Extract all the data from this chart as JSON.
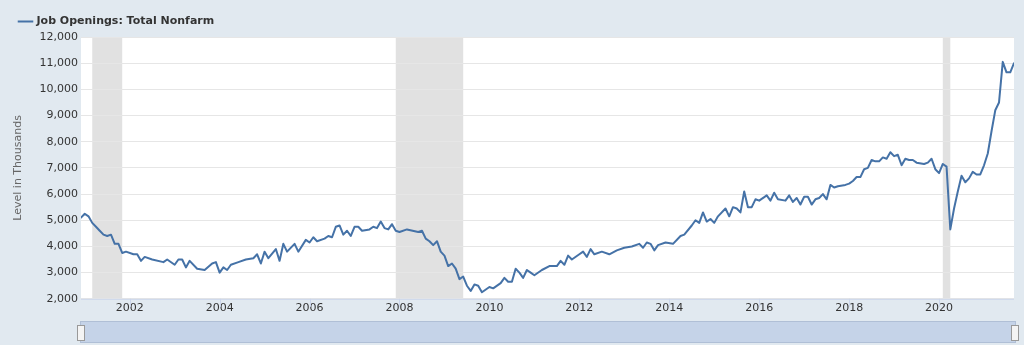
{
  "chart_data": {
    "type": "line",
    "ylabel": "Level in Thousands",
    "legend": "top left",
    "grid": "y",
    "marker": "none",
    "line_style": "solid",
    "xlim": [
      "2000-12",
      "2021-09"
    ],
    "xticks": [
      "2002",
      "2004",
      "2006",
      "2008",
      "2010",
      "2012",
      "2014",
      "2016",
      "2018",
      "2020"
    ],
    "ylim": [
      2000,
      12000
    ],
    "yticks": [
      {
        "value": 2000,
        "label": "2,000"
      },
      {
        "value": 3000,
        "label": "3,000"
      },
      {
        "value": 4000,
        "label": "4,000"
      },
      {
        "value": 5000,
        "label": "5,000"
      },
      {
        "value": 6000,
        "label": "6,000"
      },
      {
        "value": 7000,
        "label": "7,000"
      },
      {
        "value": 8000,
        "label": "8,000"
      },
      {
        "value": 9000,
        "label": "9,000"
      },
      {
        "value": 10000,
        "label": "10,000"
      },
      {
        "value": 11000,
        "label": "11,000"
      },
      {
        "value": 12000,
        "label": "12,000"
      }
    ],
    "bands": [
      {
        "axis": "x",
        "from": "2001-03",
        "to": "2001-11",
        "color": "#e1e1e1"
      },
      {
        "axis": "x",
        "from": "2007-12",
        "to": "2009-06",
        "color": "#e1e1e1"
      },
      {
        "axis": "x",
        "from": "2020-02",
        "to": "2020-04",
        "color": "#e1e1e1"
      }
    ],
    "series": [
      {
        "name": "Job Openings: Total Nonfarm",
        "color": "#4572a7",
        "x": [
          "2000-12",
          "2001-01",
          "2001-02",
          "2001-03",
          "2001-04",
          "2001-05",
          "2001-06",
          "2001-07",
          "2001-08",
          "2001-09",
          "2001-10",
          "2001-11",
          "2001-12",
          "2002-02",
          "2002-03",
          "2002-04",
          "2002-05",
          "2002-07",
          "2002-10",
          "2002-11",
          "2003-01",
          "2003-02",
          "2003-03",
          "2003-04",
          "2003-05",
          "2003-07",
          "2003-09",
          "2003-11",
          "2003-12",
          "2004-01",
          "2004-02",
          "2004-03",
          "2004-04",
          "2004-06",
          "2004-08",
          "2004-10",
          "2004-11",
          "2004-12",
          "2005-01",
          "2005-02",
          "2005-04",
          "2005-05",
          "2005-06",
          "2005-07",
          "2005-09",
          "2005-10",
          "2005-12",
          "2006-01",
          "2006-02",
          "2006-03",
          "2006-05",
          "2006-06",
          "2006-07",
          "2006-08",
          "2006-09",
          "2006-10",
          "2006-11",
          "2006-12",
          "2007-01",
          "2007-02",
          "2007-03",
          "2007-05",
          "2007-06",
          "2007-07",
          "2007-08",
          "2007-09",
          "2007-10",
          "2007-11",
          "2007-12",
          "2008-01",
          "2008-03",
          "2008-06",
          "2008-07",
          "2008-08",
          "2008-09",
          "2008-10",
          "2008-11",
          "2008-12",
          "2009-01",
          "2009-02",
          "2009-03",
          "2009-04",
          "2009-05",
          "2009-06",
          "2009-07",
          "2009-08",
          "2009-09",
          "2009-10",
          "2009-11",
          "2010-01",
          "2010-02",
          "2010-04",
          "2010-05",
          "2010-06",
          "2010-07",
          "2010-08",
          "2010-09",
          "2010-10",
          "2010-11",
          "2010-12",
          "2011-01",
          "2011-03",
          "2011-05",
          "2011-07",
          "2011-08",
          "2011-09",
          "2011-10",
          "2011-11",
          "2012-01",
          "2012-02",
          "2012-03",
          "2012-04",
          "2012-05",
          "2012-07",
          "2012-09",
          "2012-11",
          "2013-01",
          "2013-03",
          "2013-05",
          "2013-06",
          "2013-07",
          "2013-08",
          "2013-09",
          "2013-10",
          "2013-12",
          "2014-02",
          "2014-04",
          "2014-05",
          "2014-07",
          "2014-08",
          "2014-09",
          "2014-10",
          "2014-11",
          "2014-12",
          "2015-01",
          "2015-02",
          "2015-04",
          "2015-05",
          "2015-06",
          "2015-07",
          "2015-08",
          "2015-09",
          "2015-10",
          "2015-11",
          "2015-12",
          "2016-01",
          "2016-03",
          "2016-04",
          "2016-05",
          "2016-06",
          "2016-08",
          "2016-09",
          "2016-10",
          "2016-11",
          "2016-12",
          "2017-01",
          "2017-02",
          "2017-03",
          "2017-04",
          "2017-05",
          "2017-06",
          "2017-07",
          "2017-08",
          "2017-09",
          "2017-10",
          "2017-12",
          "2018-01",
          "2018-02",
          "2018-03",
          "2018-04",
          "2018-05",
          "2018-06",
          "2018-07",
          "2018-08",
          "2018-09",
          "2018-10",
          "2018-11",
          "2018-12",
          "2019-01",
          "2019-02",
          "2019-03",
          "2019-04",
          "2019-05",
          "2019-06",
          "2019-07",
          "2019-09",
          "2019-10",
          "2019-11",
          "2019-12",
          "2020-01",
          "2020-02",
          "2020-03",
          "2020-04",
          "2020-05",
          "2020-06",
          "2020-07",
          "2020-08",
          "2020-09",
          "2020-10",
          "2020-11",
          "2020-12",
          "2021-01",
          "2021-02",
          "2021-03",
          "2021-04",
          "2021-05",
          "2021-06",
          "2021-07",
          "2021-08",
          "2021-09"
        ],
        "values": [
          5100,
          5250,
          5150,
          4900,
          4750,
          4600,
          4450,
          4400,
          4450,
          4100,
          4100,
          3750,
          3800,
          3700,
          3700,
          3450,
          3600,
          3500,
          3400,
          3500,
          3300,
          3500,
          3500,
          3200,
          3450,
          3150,
          3100,
          3350,
          3400,
          3000,
          3200,
          3100,
          3300,
          3400,
          3500,
          3550,
          3700,
          3350,
          3800,
          3550,
          3900,
          3450,
          4100,
          3800,
          4100,
          3800,
          4250,
          4150,
          4350,
          4200,
          4300,
          4400,
          4350,
          4750,
          4800,
          4450,
          4600,
          4400,
          4750,
          4750,
          4600,
          4650,
          4750,
          4700,
          4950,
          4700,
          4650,
          4850,
          4600,
          4550,
          4650,
          4550,
          4600,
          4300,
          4200,
          4050,
          4200,
          3800,
          3650,
          3250,
          3350,
          3150,
          2750,
          2850,
          2500,
          2300,
          2550,
          2500,
          2250,
          2450,
          2400,
          2600,
          2800,
          2650,
          2650,
          3150,
          3000,
          2800,
          3100,
          3000,
          2900,
          3100,
          3250,
          3250,
          3450,
          3300,
          3650,
          3500,
          3700,
          3800,
          3600,
          3900,
          3700,
          3800,
          3700,
          3850,
          3950,
          4000,
          4100,
          3950,
          4150,
          4100,
          3850,
          4050,
          4150,
          4100,
          4400,
          4450,
          4800,
          5000,
          4900,
          5300,
          4950,
          5050,
          4900,
          5150,
          5450,
          5150,
          5500,
          5450,
          5300,
          6100,
          5500,
          5500,
          5800,
          5750,
          5950,
          5750,
          6050,
          5800,
          5750,
          5950,
          5700,
          5850,
          5600,
          5900,
          5900,
          5600,
          5800,
          5850,
          6000,
          5800,
          6350,
          6250,
          6300,
          6350,
          6400,
          6500,
          6650,
          6650,
          6950,
          7000,
          7300,
          7250,
          7250,
          7400,
          7350,
          7600,
          7450,
          7500,
          7100,
          7350,
          7300,
          7300,
          7200,
          7150,
          7200,
          7350,
          6950,
          6800,
          7150,
          7050,
          4650,
          5450,
          6100,
          6700,
          6450,
          6600,
          6850,
          6750,
          6750,
          7100,
          7550,
          8400,
          9200,
          9500,
          11050,
          10650,
          10650,
          11000
        ]
      }
    ]
  }
}
